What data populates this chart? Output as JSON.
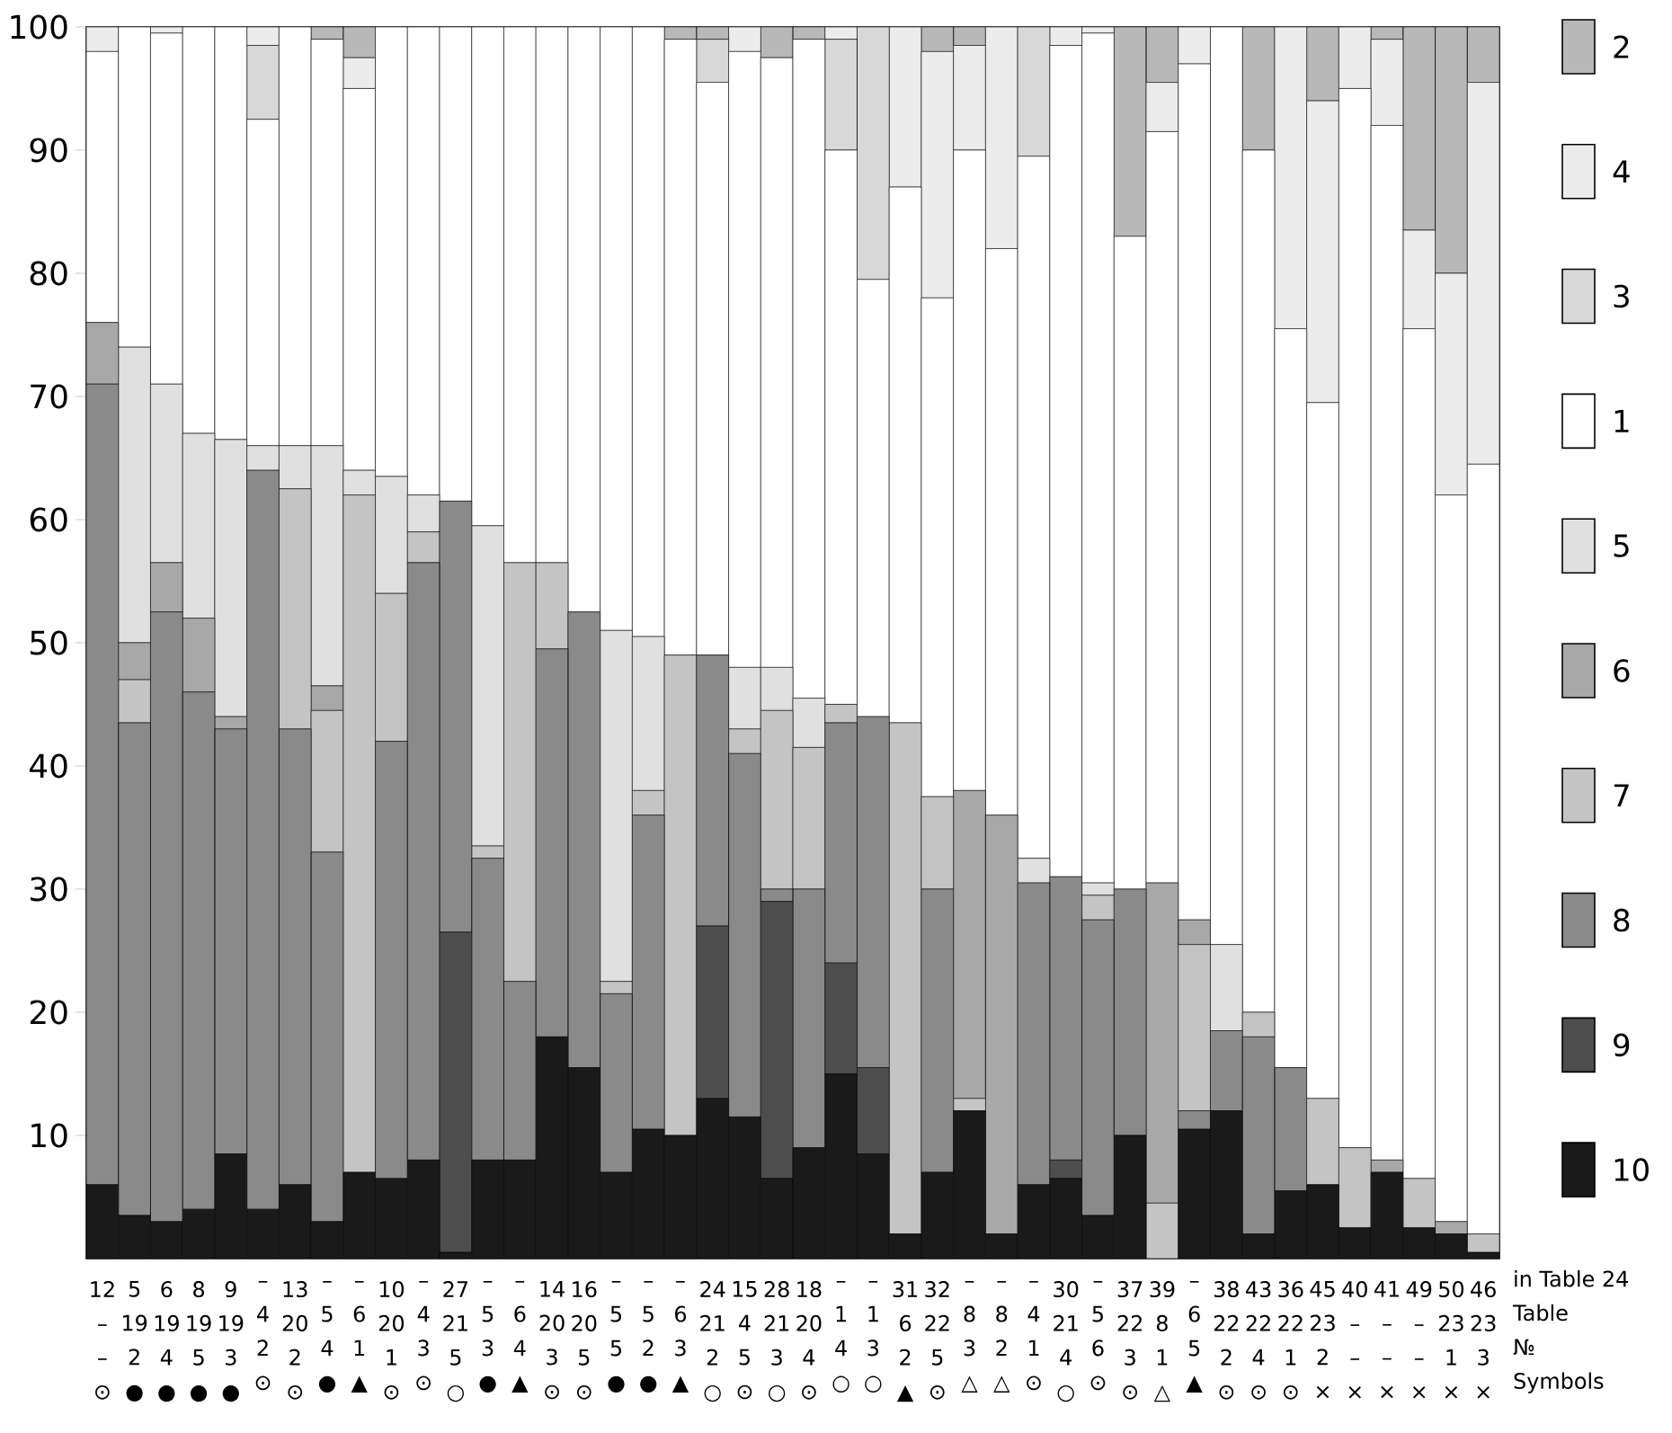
{
  "chart_data": {
    "type": "bar",
    "stacked": true,
    "legend": "right",
    "categories": [
      "12 – – ⊙",
      "5 19 2 ●",
      "6 19 4 ●",
      "8 19 5 ●",
      "9 19 3 ●",
      "– 4 2 ⊙",
      "13 20 2 ⊙",
      "– 5 4 ●",
      "– 6 1 ▲",
      "10 20 1 ⊙",
      "– 4 3 ⊙",
      "27 21 5 ○",
      "– 5 3 ●",
      "– 6 4 ▲",
      "14 20 3 ⊙",
      "16 20 5 ⊙",
      "– 5 5 ●",
      "– 5 2 ●",
      "– 6 3 ▲",
      "24 21 2 ○",
      "15 4 5 ⊙",
      "28 21 3 ○",
      "18 20 4 ⊙",
      "– 1 4 ○",
      "– 1 3 ○",
      "31 6 2 ▲",
      "32 22 5 ⊙",
      "– 8 3 △",
      "– 8 2 △",
      "– 4 1 ⊙",
      "30 21 4 ○",
      "– 5 6 ⊙",
      "37 22 3 ⊙",
      "39 8 1 △",
      "– 6 5 ▲",
      "38 22 2 ⊙",
      "43 22 4 ⊙",
      "36 22 1 ⊙",
      "45 23 2 ×",
      "40 – – ×",
      "41 – – ×",
      "49 – – ×",
      "50 23 1 ×",
      "46 23 3 ×"
    ],
    "ylim": [
      0,
      100
    ],
    "yticks": [
      10,
      20,
      30,
      40,
      50,
      60,
      70,
      80,
      90,
      100
    ],
    "annotations": [
      "in Table 24",
      "Table",
      "№",
      "Symbols"
    ],
    "series": [
      {
        "name": "10",
        "color": "#1a1a1a",
        "values": [
          6,
          3.5,
          3,
          4,
          8.5,
          4,
          6,
          3,
          7,
          6.5,
          8,
          0.5,
          8,
          8,
          18,
          15.5,
          7,
          10.5,
          10,
          13,
          11.5,
          6.5,
          9,
          15,
          8.5,
          2,
          7,
          12,
          2,
          6,
          6.5,
          3.5,
          10,
          0,
          10.5,
          12,
          2,
          5.5,
          6,
          2.5,
          7,
          2.5,
          2,
          0.5
        ]
      },
      {
        "name": "9",
        "color": "#4d4d4d",
        "values": [
          0,
          0,
          0,
          0,
          0,
          0,
          0,
          0,
          0,
          0,
          0,
          26,
          0,
          0,
          0,
          0,
          0,
          0,
          0,
          14,
          0,
          22.5,
          0,
          9,
          7,
          0,
          0,
          0,
          0,
          0,
          1.5,
          0,
          0,
          0,
          0,
          0,
          0,
          0,
          0,
          0,
          0,
          0,
          0,
          0
        ]
      },
      {
        "name": "8",
        "color": "#8a8a8a",
        "values": [
          65,
          40,
          49.5,
          42,
          34.5,
          60,
          37,
          30,
          0,
          35.5,
          48.5,
          35,
          24.5,
          14.5,
          31.5,
          37,
          14.5,
          25.5,
          0,
          22,
          29.5,
          1,
          21,
          19.5,
          28.5,
          0,
          23,
          0,
          0,
          24.5,
          23,
          24,
          20,
          0,
          1.5,
          6.5,
          16,
          10,
          0,
          0,
          0,
          0,
          0,
          0
        ]
      },
      {
        "name": "7",
        "color": "#c4c4c4",
        "values": [
          0,
          3.5,
          0,
          0,
          0,
          0,
          19.5,
          11.5,
          55,
          12,
          2.5,
          0,
          1,
          34,
          7,
          0,
          1,
          2,
          39,
          0,
          2,
          14.5,
          11.5,
          1.5,
          0,
          41.5,
          7.5,
          1,
          0,
          0,
          0,
          2,
          0,
          4.5,
          13.5,
          0,
          2,
          0,
          7,
          6.5,
          0,
          4,
          0,
          1.5
        ]
      },
      {
        "name": "6",
        "color": "#a8a8a8",
        "values": [
          5,
          3,
          4,
          6,
          1,
          0,
          0,
          2,
          0,
          0,
          0,
          0,
          0,
          0,
          0,
          0,
          0,
          0,
          0,
          0,
          0,
          0,
          0,
          0,
          0,
          0,
          0,
          25,
          34,
          0,
          0,
          0,
          0,
          26,
          2,
          0,
          0,
          0,
          0,
          0,
          1,
          0,
          1,
          0
        ]
      },
      {
        "name": "5",
        "color": "#e0e0e0",
        "values": [
          0,
          24,
          14.5,
          15,
          22.5,
          2,
          3.5,
          19.5,
          2,
          9.5,
          3,
          0,
          26,
          0,
          0,
          0,
          28.5,
          12.5,
          0,
          0,
          5,
          3.5,
          4,
          0,
          0,
          0,
          0,
          0,
          0,
          2,
          0,
          1,
          0,
          0,
          0,
          7,
          0,
          0,
          0,
          0,
          0,
          0,
          0,
          0
        ]
      },
      {
        "name": "1",
        "color": "#ffffff",
        "values": [
          22,
          26,
          28.5,
          33,
          33.5,
          26.5,
          34,
          33,
          31,
          36.5,
          38,
          38.5,
          40.5,
          43.5,
          43.5,
          47.5,
          49,
          49.5,
          50,
          46.5,
          50,
          49.5,
          53.5,
          45,
          35.5,
          43.5,
          40.5,
          52,
          46,
          57,
          67.5,
          69,
          53,
          61,
          69.5,
          74.5,
          70,
          60,
          56.5,
          86,
          84,
          69,
          59,
          62.5
        ]
      },
      {
        "name": "3",
        "color": "#d8d8d8",
        "values": [
          0,
          0,
          0,
          0,
          0,
          6,
          0,
          0,
          0,
          0,
          0,
          0,
          0,
          0,
          0,
          0,
          0,
          0,
          0,
          3.5,
          0,
          0,
          0,
          9,
          20.5,
          0,
          0,
          0,
          0,
          10.5,
          0,
          0,
          0,
          0,
          0,
          0,
          0,
          0,
          0,
          0,
          0,
          0,
          0,
          0
        ]
      },
      {
        "name": "4",
        "color": "#ececec",
        "values": [
          2,
          0,
          0.5,
          0,
          0,
          1.5,
          0,
          0,
          2.5,
          0,
          0,
          0,
          0,
          0,
          0,
          0,
          0,
          0,
          0,
          0,
          2,
          0,
          0,
          1,
          0,
          13,
          20,
          8.5,
          18,
          0,
          1.5,
          0.5,
          0,
          4,
          3,
          0,
          0,
          24.5,
          24.5,
          5,
          7,
          8,
          18,
          31
        ]
      },
      {
        "name": "2",
        "color": "#b8b8b8",
        "values": [
          0,
          0,
          0,
          0,
          0,
          0,
          0,
          1,
          2.5,
          0,
          0,
          0,
          0,
          0,
          0,
          0,
          0,
          0,
          1,
          1,
          0,
          2.5,
          1,
          0,
          0,
          0,
          2,
          1.5,
          0,
          0,
          0,
          0,
          17,
          4.5,
          0,
          0,
          10,
          0,
          6,
          0,
          1,
          16.5,
          20,
          4.5
        ]
      }
    ]
  }
}
